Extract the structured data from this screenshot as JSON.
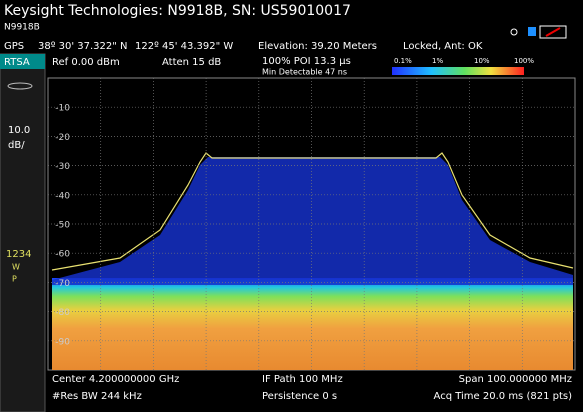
{
  "header": {
    "title": "Keysight Technologies: N9918B, SN: US59010017",
    "model": "N9918B"
  },
  "status": {
    "gps": "GPS",
    "latitude": "38º 30' 37.322\" N",
    "longitude": "122º 45' 43.392\" W",
    "elevation": "Elevation: 39.20 Meters",
    "lock": "Locked, Ant: OK"
  },
  "settings": {
    "mode": "RTSA",
    "ref": "Ref 0.00 dBm",
    "atten": "Atten 15 dB",
    "poi": "100% POI 13.3 µs",
    "min_detectable": "Min Detectable 47 ns",
    "color_scale": [
      "0.1%",
      "1%",
      "10%",
      "100%"
    ]
  },
  "side": {
    "scale": "10.0",
    "unit": "dB/",
    "traces": "1234",
    "w": "W",
    "p": "P"
  },
  "screen": {
    "y_labels": [
      "-10",
      "-20",
      "-30",
      "-40",
      "-50",
      "-60",
      "-70",
      "-80",
      "-90"
    ]
  },
  "footer": {
    "center": "Center 4.200000000 GHz",
    "if_path": "IF Path 100 MHz",
    "span": "Span 100.000000 MHz",
    "res_bw": "#Res BW 244 kHz",
    "persistence": "Persistence 0  s",
    "acq_time": "Acq Time 20.0 ms (821 pts)"
  }
}
